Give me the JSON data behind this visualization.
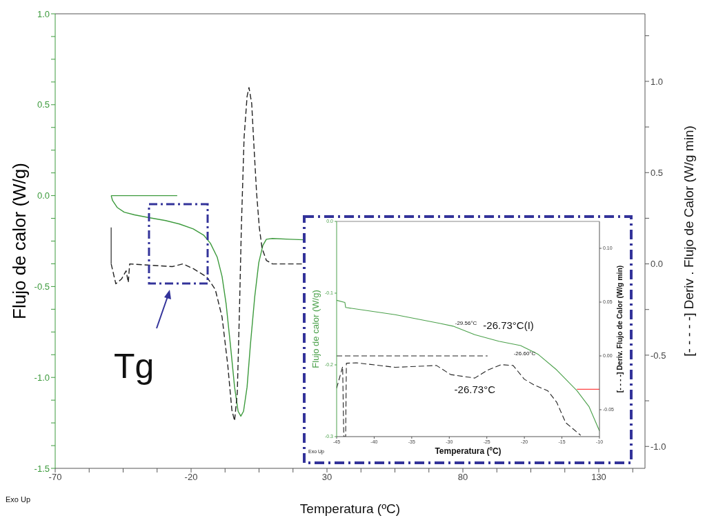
{
  "chart_data": [
    {
      "type": "line",
      "xlabel": "Temperatura (ºC)",
      "ylabel": "Flujo de calor (W/g)",
      "y2label": "[- - - - -] Deriv . Flujo de Calor (W/g   min)",
      "xlim": [
        -70,
        147
      ],
      "xticks": [
        -70,
        {
          "value": -57.5,
          "label": null
        },
        {
          "value": -45,
          "label": null
        },
        {
          "value": -32.5,
          "label": null
        },
        -20,
        {
          "value": -7.5,
          "label": null
        },
        {
          "value": 5,
          "label": null
        },
        {
          "value": 17.5,
          "label": null
        },
        30,
        {
          "value": 42.5,
          "label": null
        },
        {
          "value": 55,
          "label": null
        },
        {
          "value": 67.5,
          "label": null
        },
        80,
        {
          "value": 92.5,
          "label": null
        },
        {
          "value": 105,
          "label": null
        },
        {
          "value": 117.5,
          "label": null
        },
        130,
        {
          "value": 142.5,
          "label": null
        }
      ],
      "ylim": [
        -1.5,
        1.0
      ],
      "yticks": [
        {
          "value": -1.5,
          "label": "-1.5"
        },
        {
          "value": -1.375,
          "label": null
        },
        {
          "value": -1.25,
          "label": null
        },
        {
          "value": -1.125,
          "label": null
        },
        {
          "value": -1,
          "label": "-1.0"
        },
        {
          "value": -0.875,
          "label": null
        },
        {
          "value": -0.75,
          "label": null
        },
        {
          "value": -0.625,
          "label": null
        },
        -0.5,
        {
          "value": -0.375,
          "label": null
        },
        {
          "value": -0.25,
          "label": null
        },
        {
          "value": -0.125,
          "label": null
        },
        {
          "value": 0,
          "label": "0.0"
        },
        {
          "value": 0.125,
          "label": null
        },
        {
          "value": 0.25,
          "label": null
        },
        {
          "value": 0.375,
          "label": null
        },
        0.5,
        {
          "value": 0.625,
          "label": null
        },
        {
          "value": 0.75,
          "label": null
        },
        {
          "value": 0.875,
          "label": null
        },
        {
          "value": 1,
          "label": "1.0"
        }
      ],
      "y2lim": [
        -1.12,
        1.37
      ],
      "y2ticks": [
        {
          "value": -1,
          "label": "-1.0"
        },
        {
          "value": -0.75,
          "label": null
        },
        -0.5,
        {
          "value": -0.25,
          "label": null
        },
        {
          "value": 0,
          "label": "0.0"
        },
        {
          "value": 0.25,
          "label": null
        },
        0.5,
        {
          "value": 0.75,
          "label": null
        },
        {
          "value": 1,
          "label": "1.0"
        },
        {
          "value": 1.25,
          "label": null
        }
      ],
      "series": [
        {
          "color": "#3c9a3c",
          "x": [
            -49.4,
            -48.9,
            -47.2,
            -44.6,
            -40.8,
            -35.2,
            -29.4,
            -24.3,
            -19.2,
            -15.4,
            -12.9,
            -10.4,
            -8.6,
            -7.1,
            -5.5,
            -4.0,
            -2.7,
            -1.7,
            -0.7,
            0.6,
            1.8,
            3.4,
            4.9,
            6.4,
            7.7,
            9.9,
            16.3,
            21.4
          ],
          "values": [
            0.0,
            -0.027,
            -0.065,
            -0.091,
            -0.106,
            -0.122,
            -0.137,
            -0.156,
            -0.183,
            -0.217,
            -0.262,
            -0.338,
            -0.445,
            -0.597,
            -0.825,
            -1.053,
            -1.186,
            -1.213,
            -1.186,
            -1.053,
            -0.825,
            -0.559,
            -0.369,
            -0.274,
            -0.24,
            -0.236,
            -0.24,
            -0.243
          ]
        },
        {
          "color": "#3c9a3c",
          "x": [
            -49.4,
            -25.1
          ],
          "values": [
            0.0,
            0.0
          ]
        },
        {
          "color": "#222222",
          "axis": "y2",
          "line_style": "dashed",
          "x": [
            -49.4,
            -47.7,
            -45.6,
            -43.9,
            -43.1,
            -42.6,
            -34.5,
            -26.9,
            -23.0,
            -19.2,
            -14.2,
            -11.1,
            -8.6,
            -6.5,
            -5.0,
            -4.0,
            -3.0,
            -2.2,
            -1.5,
            -0.5,
            0.6,
            1.3,
            2.3,
            3.1,
            4.1,
            5.1,
            6.1,
            7.7,
            9.9,
            21.4
          ],
          "values": [
            0,
            -0.109,
            -0.083,
            -0.038,
            -0.102,
            0,
            -0.008,
            -0.015,
            0,
            -0.026,
            -0.072,
            -0.14,
            -0.291,
            -0.555,
            -0.8,
            -0.86,
            -0.706,
            -0.253,
            0.2,
            0.691,
            0.917,
            0.966,
            0.879,
            0.653,
            0.389,
            0.2,
            0.087,
            0.019,
            0,
            0
          ]
        },
        {
          "color": "#444444",
          "axis": "y2",
          "line_style": "solid",
          "x": [
            -49.4,
            -49.4
          ],
          "values": [
            0.2,
            0.0
          ]
        }
      ],
      "annotations": [
        "Tg",
        "Exo Up"
      ]
    },
    {
      "type": "line",
      "xlabel": "Temperatura (ºC)",
      "ylabel": "Flujo de calor (W/g)",
      "y2label": "[- - - -] Deriv. Flujo de Calor (W/g min)",
      "xlim": [
        -45,
        -10
      ],
      "xticks": [
        -45,
        -40,
        -35,
        -30,
        -25,
        -20,
        -15,
        -10
      ],
      "ylim": [
        -0.3,
        0.0
      ],
      "yticks": [
        {
          "value": -0.3,
          "label": "-0.3"
        },
        {
          "value": -0.2,
          "label": "-0.2"
        },
        {
          "value": -0.1,
          "label": "-0.1"
        },
        {
          "value": 0,
          "label": "0.0"
        }
      ],
      "y2lim": [
        -0.075,
        0.125
      ],
      "y2ticks": [
        -0.05,
        {
          "value": 0,
          "label": "0.00"
        },
        0.05,
        {
          "value": 0.1,
          "label": "0.10"
        }
      ],
      "series": [
        {
          "color": "#4aa04a",
          "x": [
            -45,
            -43.9,
            -43.8,
            -37.2,
            -31.3,
            -29.5,
            -26.6,
            -23.4,
            -20.5,
            -18.2,
            -15.7,
            -13.0,
            -11.4,
            -10
          ],
          "values": [
            -0.11,
            -0.113,
            -0.12,
            -0.13,
            -0.142,
            -0.146,
            -0.158,
            -0.167,
            -0.173,
            -0.185,
            -0.207,
            -0.236,
            -0.258,
            -0.292
          ]
        },
        {
          "color": "#ff4040",
          "x": [
            -13,
            -10
          ],
          "values": [
            -0.234,
            -0.234
          ]
        },
        {
          "color": "#222222",
          "axis": "y2",
          "line_style": "dashed",
          "x": [
            -45,
            -44.2,
            -44.05,
            -43.8,
            -43.7,
            -42.4,
            -37.2,
            -31.7,
            -29.8,
            -26.6,
            -24.9,
            -23.1,
            -21.5,
            -20.0,
            -18.7,
            -16.9,
            -15.7,
            -14.5,
            -12.5
          ],
          "values": [
            -0.03,
            -0.01,
            -0.075,
            -0.075,
            -0.0068,
            -0.0064,
            -0.0106,
            -0.0089,
            -0.0174,
            -0.0206,
            -0.0132,
            -0.0081,
            -0.0089,
            -0.0217,
            -0.027,
            -0.0323,
            -0.043,
            -0.062,
            -0.0738
          ]
        },
        {
          "color": "#222222",
          "axis": "y2",
          "line_style": "dashed",
          "x": [
            -45,
            -24.9
          ],
          "values": [
            0,
            0
          ]
        }
      ],
      "annotations": [
        {
          "text": "-29.56°C",
          "x": -29.5,
          "y": -0.146
        },
        {
          "text": "-26.73°C(I)",
          "x": -26.6,
          "y": -0.158
        },
        {
          "text": "-26.60°C",
          "x": -20.5,
          "y": -0.173
        },
        {
          "text": "-26.73°C",
          "x": -26.6,
          "y": -0.218
        },
        "Exo Up"
      ]
    }
  ]
}
